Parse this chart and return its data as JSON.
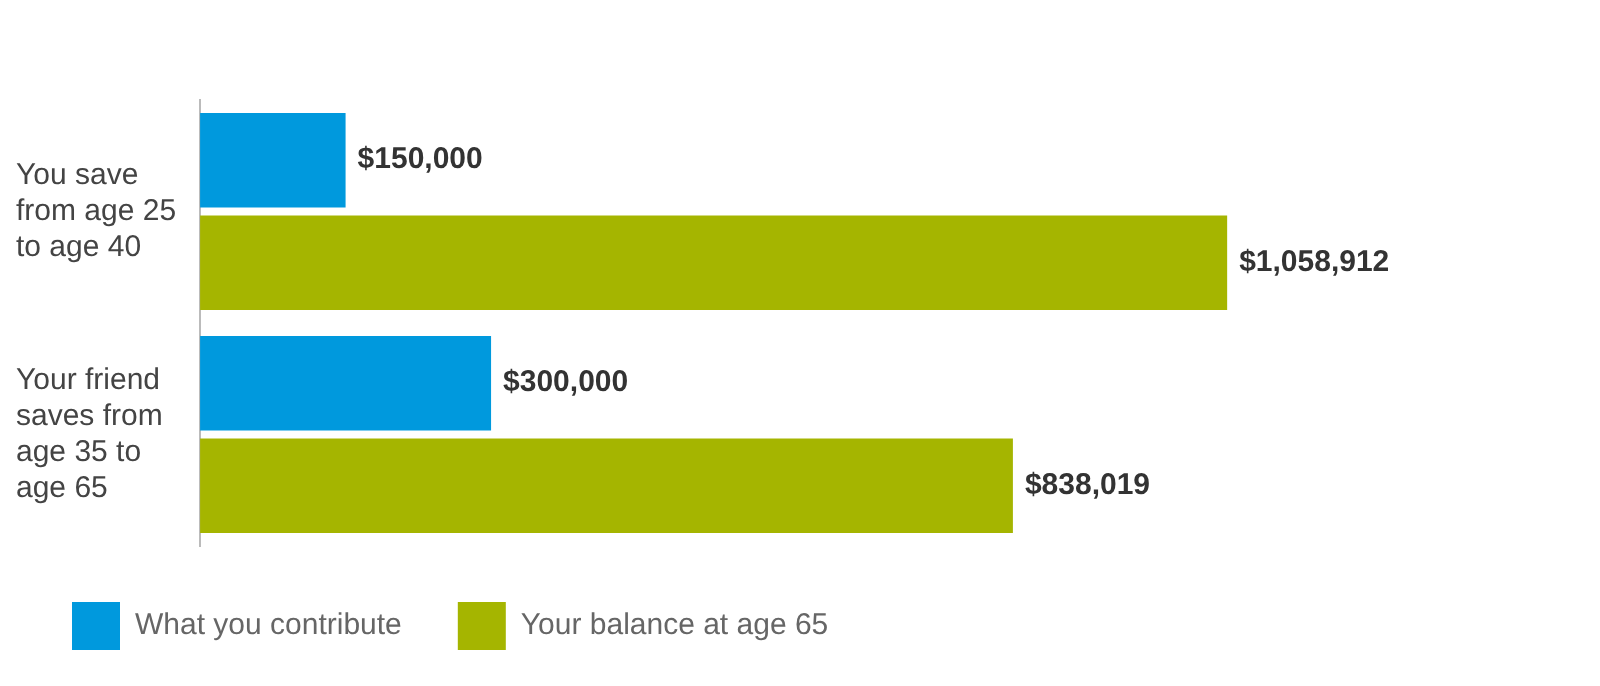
{
  "chart_data": {
    "type": "bar",
    "orientation": "horizontal",
    "categories": [
      "You save from age 25 to age 40",
      "Your friend saves from age 35 to age 65"
    ],
    "series": [
      {
        "name": "What you contribute",
        "color": "#0099dd",
        "values": [
          150000,
          300000
        ],
        "value_labels": [
          "$150,000",
          "$300,000"
        ]
      },
      {
        "name": "Your balance at age 65",
        "color": "#a5b500",
        "values": [
          1058912,
          838019
        ],
        "value_labels": [
          "$1,058,912",
          "$838,019"
        ]
      }
    ],
    "legend": "bottom left",
    "tick_labels": "y"
  }
}
